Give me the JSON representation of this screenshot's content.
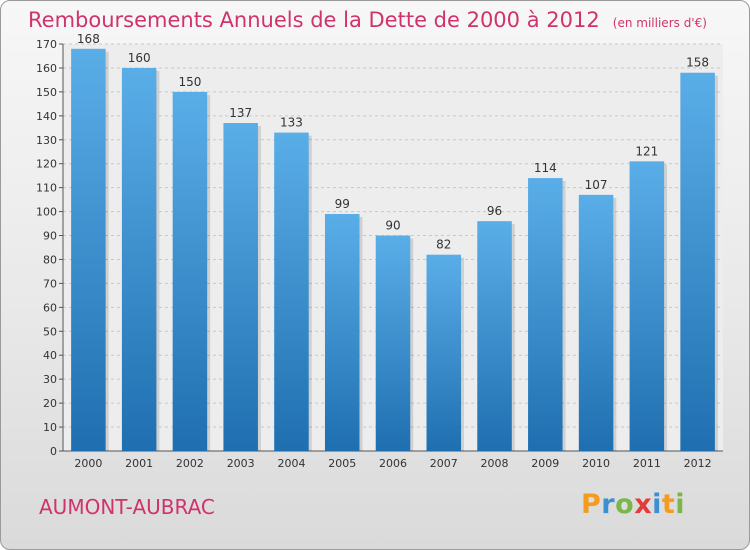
{
  "title": "Remboursements Annuels de la Dette de 2000 à 2012",
  "unit": "(en milliers d'€)",
  "town": "AUMONT-AUBRAC",
  "brand": {
    "letters": [
      "P",
      "r",
      "o",
      "x",
      "i",
      "t",
      "i"
    ],
    "colors": [
      "#f39c1f",
      "#3b8fd3",
      "#7ab648",
      "#e23b3b",
      "#3b8fd3",
      "#f39c1f",
      "#7ab648"
    ]
  },
  "colors": {
    "bar_light": "#5aaee8",
    "bar_dark": "#1f6fb0",
    "title": "#d0336c"
  },
  "chart_data": {
    "type": "bar",
    "title": "Remboursements Annuels de la Dette de 2000 à 2012",
    "categories": [
      "2000",
      "2001",
      "2002",
      "2003",
      "2004",
      "2005",
      "2006",
      "2007",
      "2008",
      "2009",
      "2010",
      "2011",
      "2012"
    ],
    "values": [
      168,
      160,
      150,
      137,
      133,
      99,
      90,
      82,
      96,
      114,
      107,
      121,
      158
    ],
    "ylim": [
      0,
      170
    ],
    "yticks": [
      0,
      10,
      20,
      30,
      40,
      50,
      60,
      70,
      80,
      90,
      100,
      110,
      120,
      130,
      140,
      150,
      160,
      170
    ],
    "grid": true,
    "legend": "none"
  }
}
